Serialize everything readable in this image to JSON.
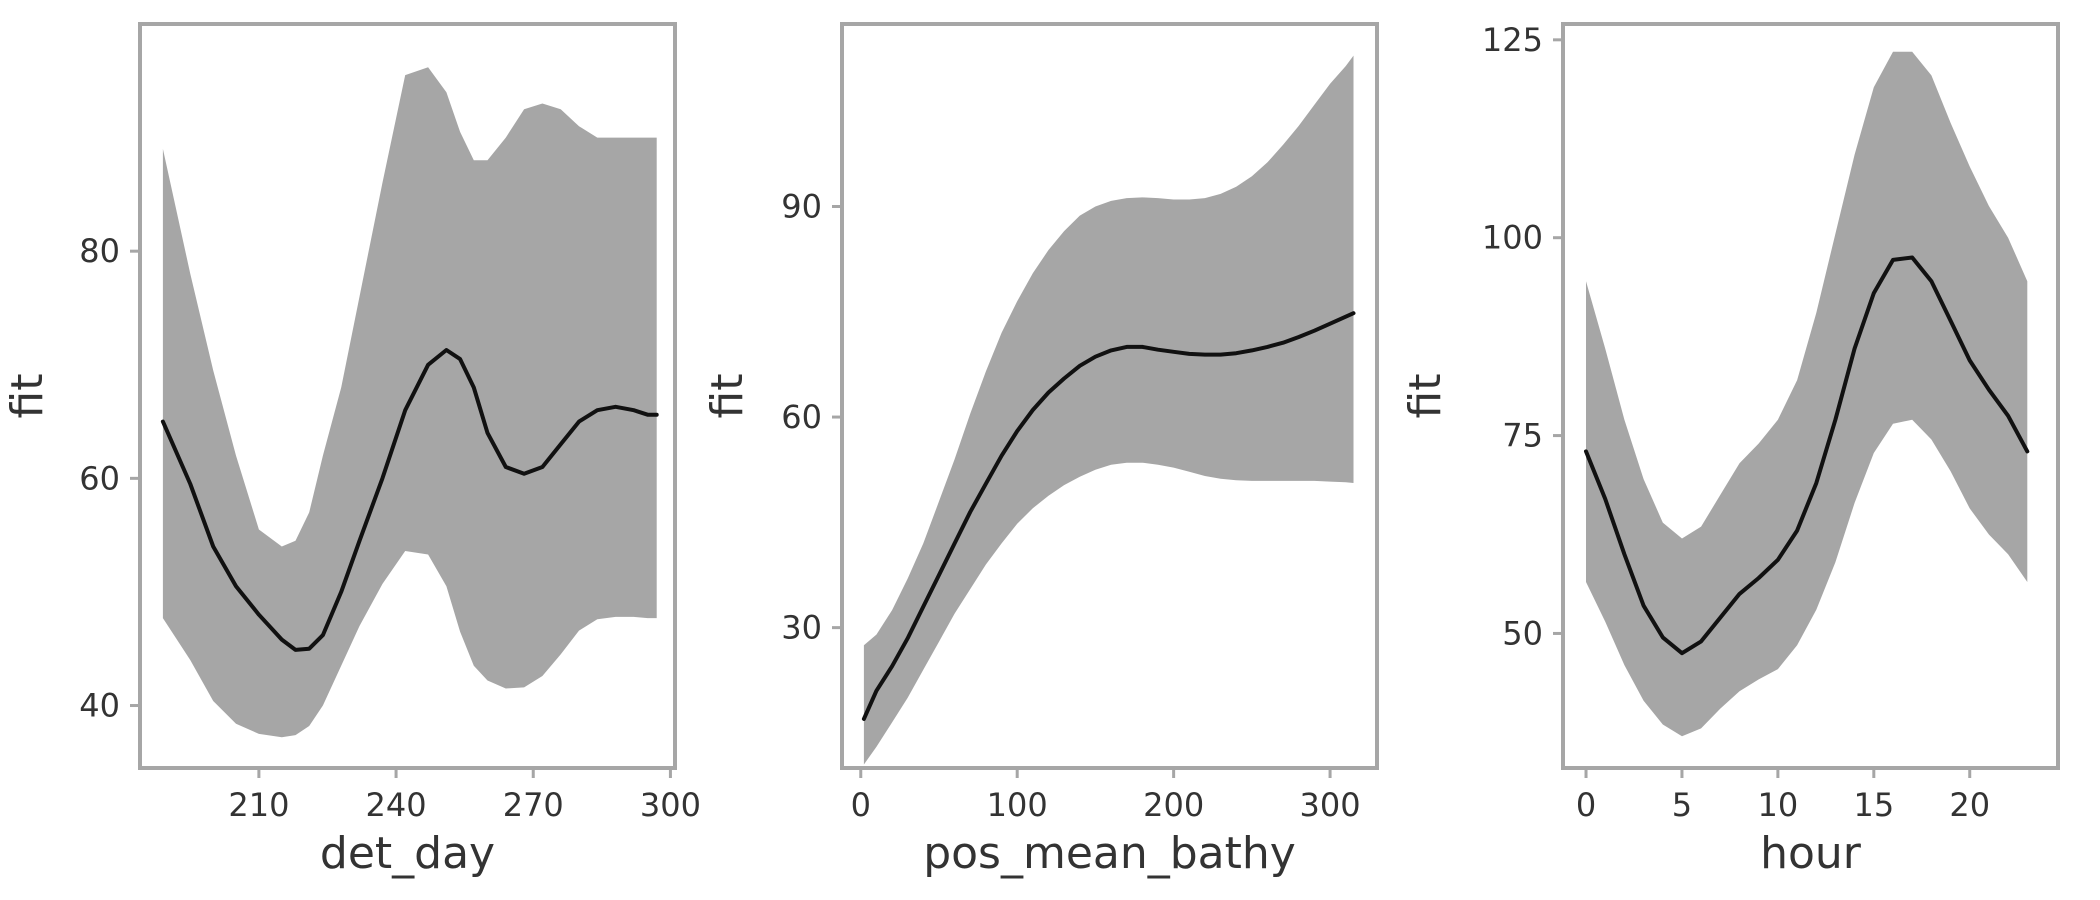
{
  "chart_data": [
    {
      "type": "line",
      "xlabel": "det_day",
      "ylabel": "fit",
      "xlim": [
        184.0,
        301.0
      ],
      "ylim": [
        34.5,
        100.0
      ],
      "xticks": [
        "210",
        "240",
        "270",
        "300"
      ],
      "yticks": [
        "40",
        "60",
        "80"
      ],
      "grid": false,
      "band_color": "#a6a6a6",
      "line_color": "#111111",
      "x": [
        189,
        195,
        200,
        205,
        210,
        215,
        218,
        221,
        224,
        228,
        232,
        237,
        242,
        247,
        251,
        254,
        257,
        260,
        264,
        268,
        272,
        276,
        280,
        284,
        288,
        292,
        295,
        297
      ],
      "fit": [
        65.0,
        59.5,
        54.0,
        50.5,
        48.0,
        45.8,
        44.9,
        45.0,
        46.2,
        50.0,
        54.5,
        60.0,
        66.0,
        70.0,
        71.3,
        70.5,
        68.0,
        64.0,
        61.0,
        60.4,
        61.0,
        63.0,
        65.0,
        66.0,
        66.3,
        66.0,
        65.6,
        65.6
      ],
      "lower": [
        47.7,
        44.0,
        40.4,
        38.4,
        37.5,
        37.2,
        37.4,
        38.2,
        40.0,
        43.5,
        47.0,
        50.7,
        53.6,
        53.3,
        50.5,
        46.5,
        43.5,
        42.2,
        41.5,
        41.6,
        42.6,
        44.5,
        46.6,
        47.6,
        47.8,
        47.8,
        47.7,
        47.7
      ],
      "upper": [
        89.0,
        78.0,
        69.5,
        62.0,
        55.5,
        54.0,
        54.5,
        57.0,
        62.0,
        68.0,
        76.0,
        86.0,
        95.5,
        96.2,
        94.0,
        90.5,
        88.0,
        88.0,
        90.0,
        92.5,
        93.0,
        92.5,
        91.0,
        90.0,
        90.0,
        90.0,
        90.0,
        90.0
      ]
    },
    {
      "type": "line",
      "xlabel": "pos_mean_bathy",
      "ylabel": "fit",
      "xlim": [
        -12.0,
        330.0
      ],
      "ylim": [
        10.0,
        116.0
      ],
      "xticks": [
        "0",
        "100",
        "200",
        "300"
      ],
      "yticks": [
        "30",
        "60",
        "90"
      ],
      "grid": false,
      "band_color": "#a6a6a6",
      "line_color": "#111111",
      "x": [
        2,
        10,
        20,
        30,
        40,
        50,
        60,
        70,
        80,
        90,
        100,
        110,
        120,
        130,
        140,
        150,
        160,
        170,
        180,
        190,
        200,
        210,
        220,
        230,
        240,
        250,
        260,
        270,
        280,
        290,
        300,
        310,
        315
      ],
      "fit": [
        17.0,
        21.0,
        24.5,
        28.5,
        33.0,
        37.5,
        42.0,
        46.5,
        50.5,
        54.5,
        58.0,
        61.0,
        63.5,
        65.5,
        67.3,
        68.6,
        69.5,
        70.0,
        70.0,
        69.6,
        69.3,
        69.0,
        68.9,
        68.9,
        69.1,
        69.5,
        70.0,
        70.6,
        71.4,
        72.3,
        73.3,
        74.3,
        74.8
      ],
      "lower": [
        10.5,
        13.0,
        16.5,
        20.0,
        24.0,
        28.0,
        32.0,
        35.5,
        39.0,
        42.0,
        44.8,
        47.0,
        48.8,
        50.3,
        51.5,
        52.5,
        53.2,
        53.5,
        53.5,
        53.2,
        52.8,
        52.2,
        51.6,
        51.2,
        51.0,
        50.9,
        50.9,
        50.9,
        50.9,
        50.9,
        50.8,
        50.7,
        50.6
      ],
      "upper": [
        27.5,
        29.0,
        32.5,
        37.0,
        42.0,
        48.0,
        54.0,
        60.5,
        66.5,
        72.0,
        76.5,
        80.5,
        83.8,
        86.5,
        88.7,
        90.0,
        90.8,
        91.2,
        91.3,
        91.2,
        91.0,
        91.0,
        91.2,
        91.8,
        92.8,
        94.3,
        96.3,
        98.8,
        101.5,
        104.5,
        107.5,
        110.0,
        111.5
      ]
    },
    {
      "type": "line",
      "xlabel": "hour",
      "ylabel": "fit",
      "xlim": [
        -1.2,
        24.6
      ],
      "ylim": [
        33.0,
        127.0
      ],
      "xticks": [
        "0",
        "5",
        "10",
        "15",
        "20"
      ],
      "yticks": [
        "50",
        "75",
        "100",
        "125"
      ],
      "grid": false,
      "band_color": "#a6a6a6",
      "line_color": "#111111",
      "x": [
        0,
        1,
        2,
        3,
        4,
        5,
        6,
        7,
        8,
        9,
        10,
        11,
        12,
        13,
        14,
        15,
        16,
        17,
        18,
        19,
        20,
        21,
        22,
        23
      ],
      "fit": [
        73.0,
        67.0,
        60.0,
        53.5,
        49.5,
        47.5,
        49.0,
        52.0,
        55.0,
        57.0,
        59.3,
        63.0,
        69.0,
        77.0,
        86.0,
        93.0,
        97.2,
        97.5,
        94.5,
        89.5,
        84.5,
        80.8,
        77.5,
        73.0
      ],
      "lower": [
        56.5,
        51.5,
        46.0,
        41.5,
        38.5,
        37.0,
        38.0,
        40.5,
        42.7,
        44.2,
        45.5,
        48.5,
        53.0,
        59.0,
        66.5,
        72.8,
        76.5,
        77.0,
        74.5,
        70.5,
        65.8,
        62.5,
        60.0,
        56.5
      ],
      "upper": [
        94.5,
        86.0,
        77.0,
        69.5,
        64.0,
        62.0,
        63.5,
        67.5,
        71.5,
        74.0,
        77.0,
        82.0,
        90.5,
        100.5,
        110.5,
        119.0,
        123.5,
        123.5,
        120.5,
        114.5,
        109.0,
        104.0,
        100.0,
        94.5
      ]
    }
  ]
}
